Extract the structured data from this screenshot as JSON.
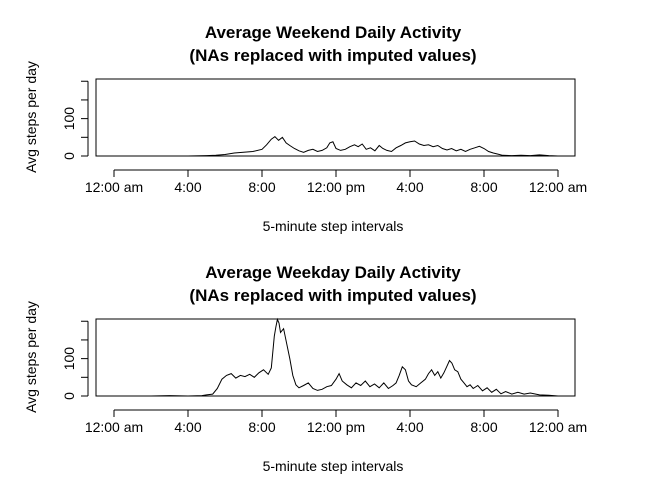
{
  "chart_data": [
    {
      "type": "line",
      "title": "Average Weekend Daily Activity",
      "subtitle": "(NAs replaced with imputed values)",
      "xlabel": "5-minute step intervals",
      "ylabel": "Avg steps per day",
      "xlim": [
        0,
        1440
      ],
      "ylim": [
        0,
        206
      ],
      "x_ticks": [
        0,
        240,
        480,
        720,
        960,
        1200,
        1440
      ],
      "x_tick_labels": [
        "12:00 am",
        "4:00",
        "8:00",
        "12:00 pm",
        "4:00",
        "8:00",
        "12:00 am"
      ],
      "y_ticks": [
        0,
        50,
        100,
        150,
        200
      ],
      "y_tick_labels": [
        "0",
        "",
        "100",
        "",
        ""
      ],
      "grid": false,
      "legend": "none",
      "color": "#000000",
      "series": [
        {
          "points": [
            [
              0,
              0
            ],
            [
              60,
              0
            ],
            [
              120,
              0
            ],
            [
              180,
              0
            ],
            [
              240,
              0
            ],
            [
              300,
              1
            ],
            [
              330,
              2
            ],
            [
              360,
              4
            ],
            [
              390,
              8
            ],
            [
              420,
              10
            ],
            [
              450,
              12
            ],
            [
              480,
              18
            ],
            [
              495,
              30
            ],
            [
              510,
              45
            ],
            [
              522,
              52
            ],
            [
              534,
              42
            ],
            [
              546,
              50
            ],
            [
              558,
              35
            ],
            [
              570,
              28
            ],
            [
              585,
              20
            ],
            [
              600,
              14
            ],
            [
              615,
              10
            ],
            [
              630,
              15
            ],
            [
              645,
              18
            ],
            [
              660,
              12
            ],
            [
              675,
              15
            ],
            [
              690,
              22
            ],
            [
              700,
              35
            ],
            [
              710,
              38
            ],
            [
              720,
              20
            ],
            [
              735,
              15
            ],
            [
              750,
              18
            ],
            [
              765,
              25
            ],
            [
              780,
              30
            ],
            [
              792,
              25
            ],
            [
              805,
              32
            ],
            [
              818,
              18
            ],
            [
              832,
              22
            ],
            [
              846,
              14
            ],
            [
              860,
              28
            ],
            [
              872,
              20
            ],
            [
              885,
              15
            ],
            [
              900,
              12
            ],
            [
              915,
              22
            ],
            [
              930,
              28
            ],
            [
              945,
              35
            ],
            [
              960,
              38
            ],
            [
              975,
              40
            ],
            [
              990,
              32
            ],
            [
              1005,
              28
            ],
            [
              1020,
              30
            ],
            [
              1035,
              25
            ],
            [
              1050,
              28
            ],
            [
              1065,
              20
            ],
            [
              1080,
              16
            ],
            [
              1095,
              20
            ],
            [
              1110,
              14
            ],
            [
              1125,
              18
            ],
            [
              1140,
              12
            ],
            [
              1155,
              18
            ],
            [
              1170,
              22
            ],
            [
              1185,
              26
            ],
            [
              1200,
              20
            ],
            [
              1215,
              12
            ],
            [
              1230,
              8
            ],
            [
              1245,
              5
            ],
            [
              1260,
              2
            ],
            [
              1290,
              1
            ],
            [
              1320,
              2
            ],
            [
              1350,
              1
            ],
            [
              1380,
              3
            ],
            [
              1410,
              1
            ],
            [
              1440,
              0
            ]
          ]
        }
      ]
    },
    {
      "type": "line",
      "title": "Average Weekday Daily Activity",
      "subtitle": "(NAs replaced with imputed values)",
      "xlabel": "5-minute step intervals",
      "ylabel": "Avg steps per day",
      "xlim": [
        0,
        1440
      ],
      "ylim": [
        0,
        206
      ],
      "x_ticks": [
        0,
        240,
        480,
        720,
        960,
        1200,
        1440
      ],
      "x_tick_labels": [
        "12:00 am",
        "4:00",
        "8:00",
        "12:00 pm",
        "4:00",
        "8:00",
        "12:00 am"
      ],
      "y_ticks": [
        0,
        50,
        100,
        150,
        200
      ],
      "y_tick_labels": [
        "0",
        "",
        "100",
        "",
        ""
      ],
      "grid": false,
      "legend": "none",
      "color": "#000000",
      "series": [
        {
          "points": [
            [
              0,
              0
            ],
            [
              60,
              0
            ],
            [
              120,
              0
            ],
            [
              180,
              1
            ],
            [
              240,
              0
            ],
            [
              285,
              1
            ],
            [
              300,
              3
            ],
            [
              320,
              5
            ],
            [
              335,
              20
            ],
            [
              350,
              45
            ],
            [
              365,
              55
            ],
            [
              380,
              60
            ],
            [
              395,
              48
            ],
            [
              410,
              55
            ],
            [
              425,
              52
            ],
            [
              440,
              58
            ],
            [
              455,
              50
            ],
            [
              470,
              62
            ],
            [
              485,
              70
            ],
            [
              500,
              58
            ],
            [
              510,
              75
            ],
            [
              520,
              160
            ],
            [
              525,
              185
            ],
            [
              530,
              205
            ],
            [
              535,
              195
            ],
            [
              540,
              170
            ],
            [
              550,
              180
            ],
            [
              560,
              140
            ],
            [
              570,
              100
            ],
            [
              580,
              55
            ],
            [
              590,
              30
            ],
            [
              600,
              22
            ],
            [
              615,
              28
            ],
            [
              630,
              35
            ],
            [
              645,
              20
            ],
            [
              660,
              15
            ],
            [
              675,
              18
            ],
            [
              690,
              25
            ],
            [
              705,
              28
            ],
            [
              720,
              45
            ],
            [
              730,
              60
            ],
            [
              740,
              40
            ],
            [
              755,
              30
            ],
            [
              770,
              22
            ],
            [
              785,
              35
            ],
            [
              800,
              28
            ],
            [
              815,
              40
            ],
            [
              830,
              25
            ],
            [
              845,
              32
            ],
            [
              860,
              22
            ],
            [
              875,
              35
            ],
            [
              890,
              20
            ],
            [
              905,
              28
            ],
            [
              915,
              35
            ],
            [
              925,
              55
            ],
            [
              935,
              78
            ],
            [
              945,
              70
            ],
            [
              955,
              40
            ],
            [
              965,
              30
            ],
            [
              980,
              25
            ],
            [
              995,
              35
            ],
            [
              1010,
              45
            ],
            [
              1020,
              60
            ],
            [
              1030,
              70
            ],
            [
              1040,
              55
            ],
            [
              1050,
              65
            ],
            [
              1060,
              48
            ],
            [
              1070,
              62
            ],
            [
              1080,
              80
            ],
            [
              1088,
              95
            ],
            [
              1096,
              88
            ],
            [
              1105,
              70
            ],
            [
              1115,
              65
            ],
            [
              1125,
              45
            ],
            [
              1135,
              35
            ],
            [
              1145,
              25
            ],
            [
              1155,
              30
            ],
            [
              1165,
              20
            ],
            [
              1180,
              28
            ],
            [
              1195,
              14
            ],
            [
              1210,
              22
            ],
            [
              1225,
              10
            ],
            [
              1240,
              18
            ],
            [
              1255,
              6
            ],
            [
              1270,
              12
            ],
            [
              1290,
              5
            ],
            [
              1310,
              10
            ],
            [
              1330,
              5
            ],
            [
              1350,
              8
            ],
            [
              1380,
              3
            ],
            [
              1410,
              2
            ],
            [
              1440,
              0
            ]
          ]
        }
      ]
    }
  ]
}
